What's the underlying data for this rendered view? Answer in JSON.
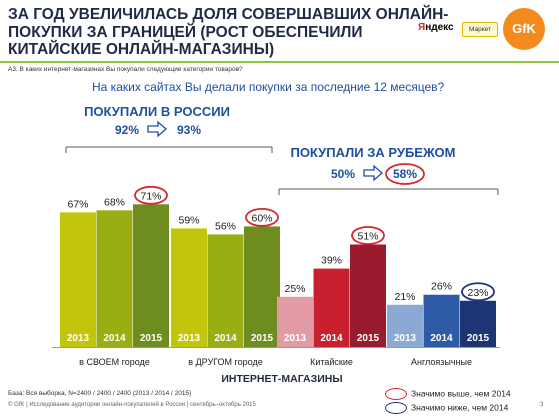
{
  "title_lines": [
    "ЗА ГОД УВЕЛИЧИЛАСЬ ДОЛЯ СОВЕРШАВШИХ ОНЛАЙН-",
    "ПОКУПКИ ЗА ГРАНИЦЕЙ (РОСТ ОБЕСПЕЧИЛИ",
    "КИТАЙСКИЕ ОНЛАЙН-МАГАЗИНЫ)"
  ],
  "question_code": "А3. В каких интернет-магазинах Вы покупали следующие категории товаров?",
  "question": "На каких сайтах Вы делали покупки за последние 12 месяцев?",
  "logos": {
    "yandex": "Яндекс",
    "market": "Маркет",
    "gfk": "GfK"
  },
  "colors": {
    "accent_green": "#8dc63f",
    "title": "#1f2a44",
    "group_blue": "#1f4fa0",
    "higher": "#d7262e",
    "lower": "#22307a"
  },
  "chart_data": {
    "type": "bar",
    "ylim": [
      0,
      100
    ],
    "years": [
      "2013",
      "2014",
      "2015"
    ],
    "xlabel": "ИНТЕРНЕТ-МАГАЗИНЫ",
    "groups": [
      {
        "title": "ПОКУПАЛИ В РОССИИ",
        "from": "92%",
        "to": "93%"
      },
      {
        "title": "ПОКУПАЛИ ЗА РУБЕЖОМ",
        "from": "50%",
        "to": "58%"
      }
    ],
    "categories": [
      {
        "name": "в СВОЕМ городе",
        "values": [
          67,
          68,
          71
        ],
        "labels": [
          "67%",
          "68%",
          "71%"
        ],
        "colors": [
          "#c2c60a",
          "#9aae14",
          "#6f8d1e"
        ],
        "mark": "higher"
      },
      {
        "name": "в ДРУГОМ городе",
        "values": [
          59,
          56,
          60
        ],
        "labels": [
          "59%",
          "56%",
          "60%"
        ],
        "colors": [
          "#c2c60a",
          "#9aae14",
          "#6f8d1e"
        ],
        "mark": "higher"
      },
      {
        "name": "Китайские",
        "values": [
          25,
          39,
          51
        ],
        "labels": [
          "25%",
          "39%",
          "51%"
        ],
        "colors": [
          "#e29aa4",
          "#c8202f",
          "#991b2d"
        ],
        "mark": "higher"
      },
      {
        "name": "Англоязычные",
        "values": [
          21,
          26,
          23
        ],
        "labels": [
          "21%",
          "26%",
          "23%"
        ],
        "colors": [
          "#8ba9d4",
          "#2d5ba8",
          "#1d3572"
        ],
        "mark": "lower"
      }
    ]
  },
  "legend": {
    "higher": "Значимо выше, чем 2014",
    "lower": "Значимо ниже, чем 2014"
  },
  "footer": {
    "base": "База: Вся выборка, N=2400 / 2400 / 2400 (2013 / 2014 / 2015)",
    "source": "© GfK | Исследование аудитории онлайн-покупателей в России | сентябрь–октябрь 2015",
    "page": "3"
  }
}
